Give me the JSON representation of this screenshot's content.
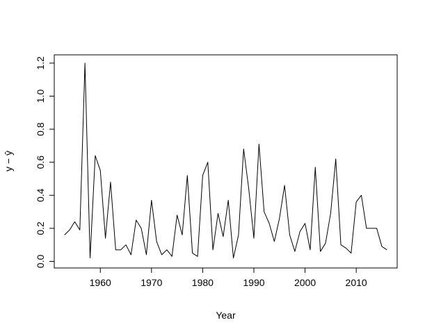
{
  "chart_data": {
    "type": "line",
    "title": "",
    "xlabel": "Year",
    "ylabel": "y − ŷ",
    "xlim": [
      1951,
      2018
    ],
    "ylim": [
      -0.04,
      1.25
    ],
    "xticks": [
      1960,
      1970,
      1980,
      1990,
      2000,
      2010
    ],
    "xtick_labels": [
      "1960",
      "1970",
      "1980",
      "1990",
      "2000",
      "2010"
    ],
    "yticks": [
      0.0,
      0.2,
      0.4,
      0.6,
      0.8,
      1.0,
      1.2
    ],
    "ytick_labels": [
      "0.0",
      "0.2",
      "0.4",
      "0.6",
      "0.8",
      "1.0",
      "1.2"
    ],
    "grid": false,
    "line_color": "#000000",
    "x": [
      1953,
      1954,
      1955,
      1956,
      1957,
      1958,
      1959,
      1960,
      1961,
      1962,
      1963,
      1964,
      1965,
      1966,
      1967,
      1968,
      1969,
      1970,
      1971,
      1972,
      1973,
      1974,
      1975,
      1976,
      1977,
      1978,
      1979,
      1980,
      1981,
      1982,
      1983,
      1984,
      1985,
      1986,
      1987,
      1988,
      1989,
      1990,
      1991,
      1992,
      1993,
      1994,
      1995,
      1996,
      1997,
      1998,
      1999,
      2000,
      2001,
      2002,
      2003,
      2004,
      2005,
      2006,
      2007,
      2008,
      2009,
      2010,
      2011,
      2012,
      2013,
      2014,
      2015,
      2016
    ],
    "series": [
      {
        "values": [
          0.16,
          0.19,
          0.24,
          0.19,
          1.2,
          0.02,
          0.64,
          0.55,
          0.14,
          0.48,
          0.07,
          0.07,
          0.1,
          0.04,
          0.25,
          0.2,
          0.04,
          0.37,
          0.12,
          0.04,
          0.07,
          0.03,
          0.28,
          0.16,
          0.52,
          0.05,
          0.03,
          0.52,
          0.6,
          0.07,
          0.29,
          0.15,
          0.37,
          0.02,
          0.16,
          0.68,
          0.44,
          0.14,
          0.71,
          0.3,
          0.23,
          0.12,
          0.26,
          0.46,
          0.16,
          0.06,
          0.18,
          0.23,
          0.07,
          0.57,
          0.06,
          0.11,
          0.29,
          0.62,
          0.1,
          0.08,
          0.05,
          0.36,
          0.4,
          0.2,
          0.2,
          0.2,
          0.09,
          0.07
        ]
      }
    ]
  }
}
